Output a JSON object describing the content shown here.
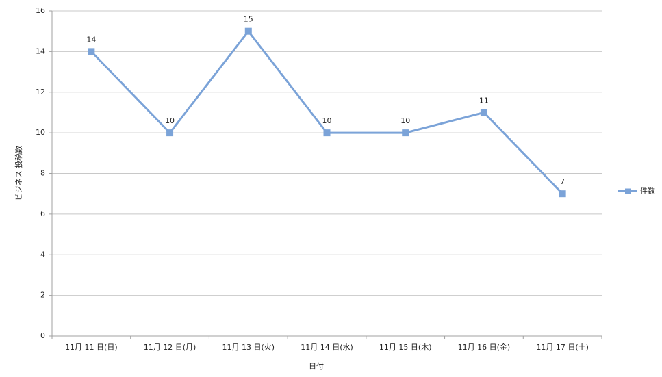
{
  "chart_data": {
    "type": "line",
    "categories": [
      "11月 11 日(日)",
      "11月 12 日(月)",
      "11月 13 日(火)",
      "11月 14 日(水)",
      "11月 15 日(木)",
      "11月 16 日(金)",
      "11月 17 日(土)"
    ],
    "series": [
      {
        "name": "件数",
        "color": "#7ba3d8",
        "values": [
          14,
          10,
          15,
          10,
          10,
          11,
          7
        ]
      }
    ],
    "x_label": "日付",
    "y_label": "ビジネス 投稿数",
    "ylim": [
      0,
      16
    ],
    "yticks": [
      0,
      2,
      4,
      6,
      8,
      10,
      12,
      14,
      16
    ],
    "grid": true,
    "data_labels": true,
    "legend": "right"
  }
}
